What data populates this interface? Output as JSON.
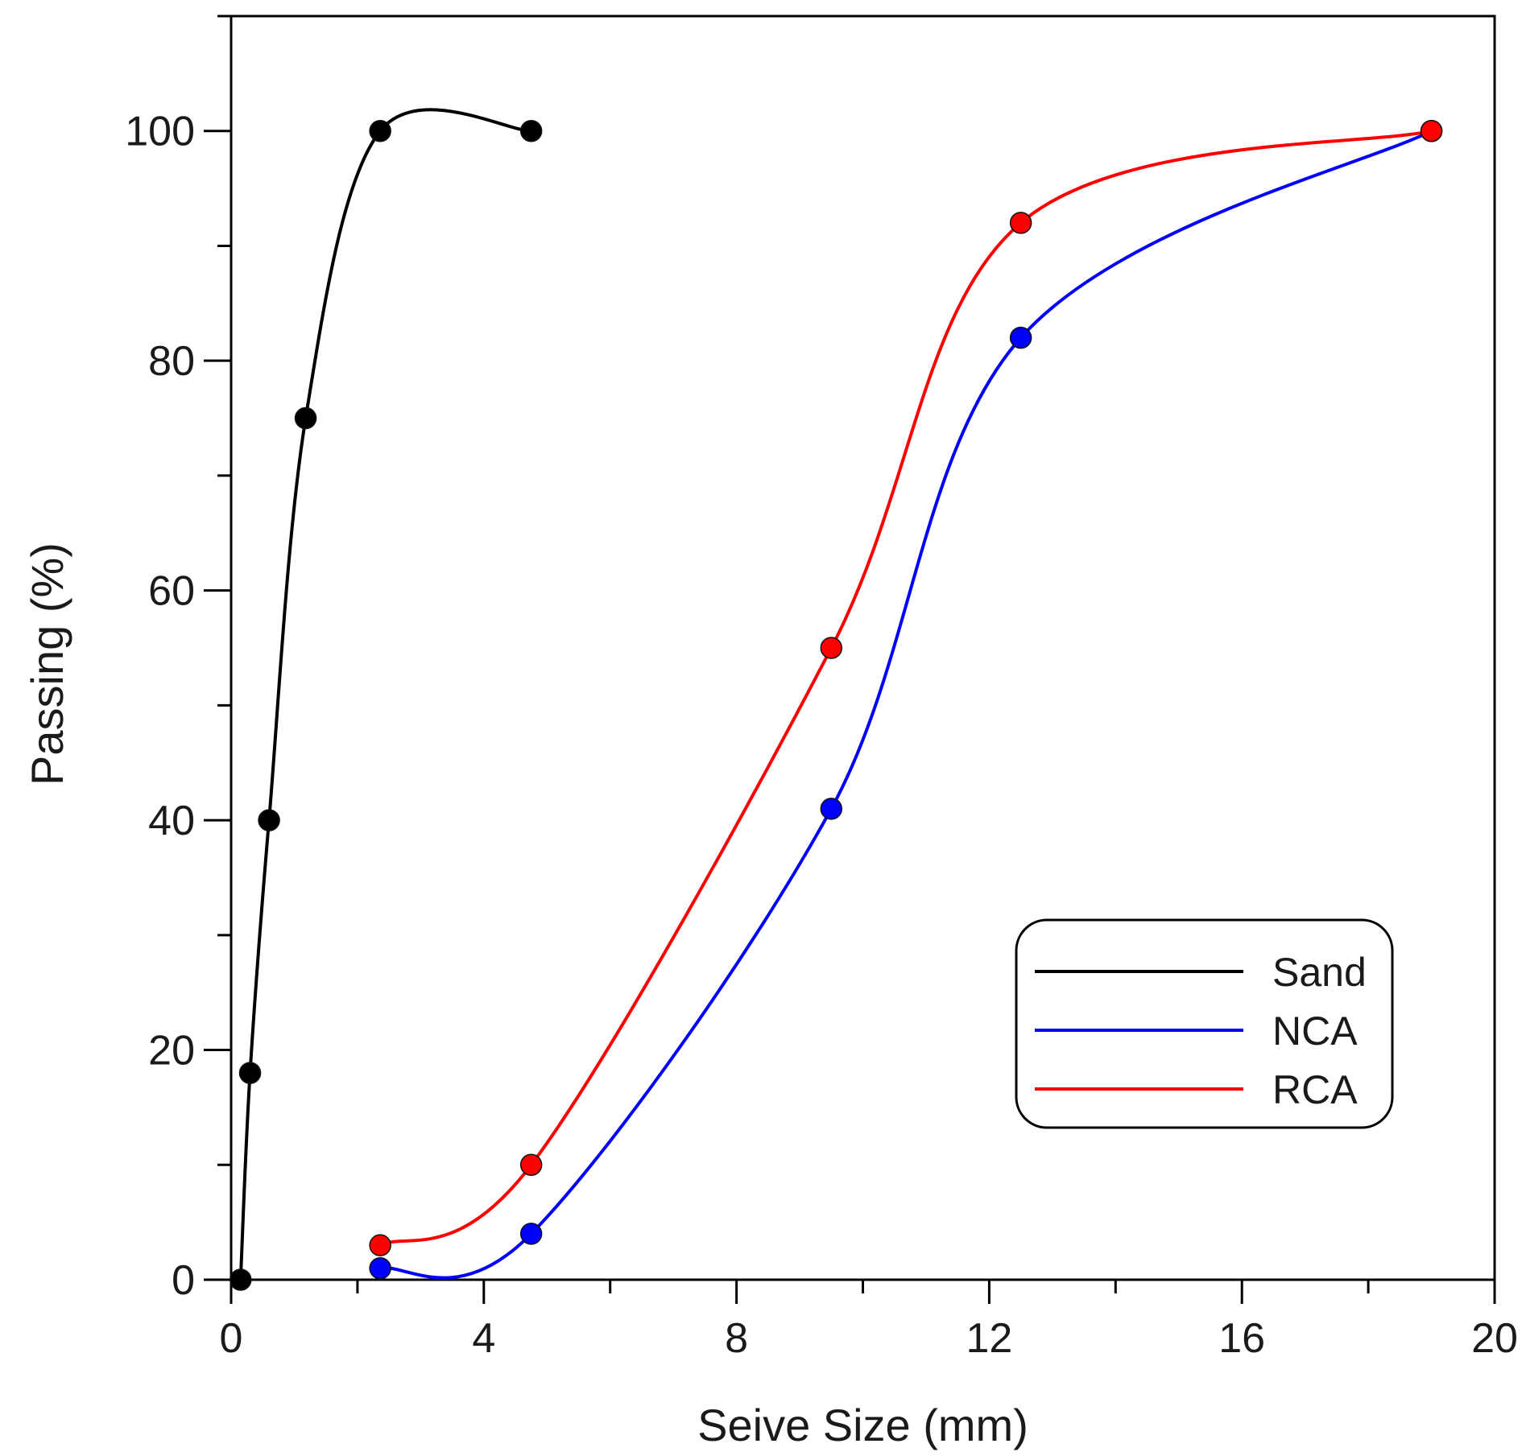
{
  "chart_data": {
    "type": "line",
    "title": "",
    "xlabel": "Seive Size (mm)",
    "ylabel": "Passing (%)",
    "xlim": [
      0,
      20
    ],
    "ylim": [
      0,
      110
    ],
    "x_ticks": [
      0,
      4,
      8,
      12,
      16,
      20
    ],
    "x_tick_labels": [
      "0",
      "4",
      "8",
      "12",
      "16",
      "20"
    ],
    "y_ticks": [
      0,
      20,
      40,
      60,
      80,
      100
    ],
    "y_tick_labels": [
      "0",
      "20",
      "40",
      "60",
      "80",
      "100"
    ],
    "grid": false,
    "legend_position": "bottom-right",
    "series": [
      {
        "name": "Sand",
        "color": "#000000",
        "x": [
          0.15,
          0.3,
          0.6,
          1.18,
          2.36,
          4.75
        ],
        "y": [
          0,
          18,
          40,
          75,
          100,
          100
        ]
      },
      {
        "name": "NCA",
        "color": "#0000ff",
        "x": [
          2.36,
          4.75,
          9.5,
          12.5,
          19
        ],
        "y": [
          1,
          4,
          41,
          82,
          100
        ]
      },
      {
        "name": "RCA",
        "color": "#ff0000",
        "x": [
          2.36,
          4.75,
          9.5,
          12.5,
          19
        ],
        "y": [
          3,
          10,
          55,
          92,
          100
        ]
      }
    ]
  }
}
